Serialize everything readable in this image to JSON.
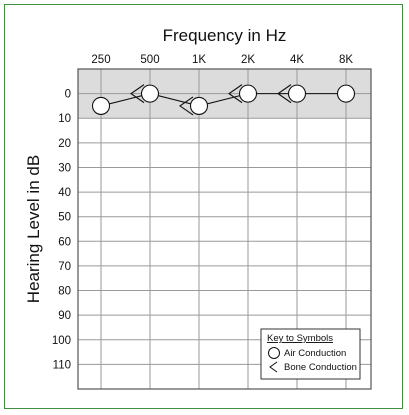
{
  "chart_data": {
    "type": "line",
    "title": "Frequency in Hz",
    "ylabel": "Hearing Level in dB",
    "x_tick_labels": [
      "250",
      "500",
      "1K",
      "2K",
      "4K",
      "8K"
    ],
    "y_ticks": [
      0,
      10,
      20,
      30,
      40,
      50,
      60,
      70,
      80,
      90,
      100,
      110
    ],
    "ylim": [
      -10,
      120
    ],
    "y_inverted": true,
    "shaded_band": [
      -10,
      10
    ],
    "series": [
      {
        "name": "Air Conduction",
        "symbol": "circle",
        "values": [
          5,
          0,
          5,
          0,
          0,
          0
        ]
      },
      {
        "name": "Bone Conduction",
        "symbol": "<",
        "points": [
          [
            "500",
            0
          ],
          [
            "1K",
            5
          ],
          [
            "2K",
            0
          ],
          [
            "4K",
            0
          ]
        ]
      }
    ],
    "legend": {
      "title": "Key to Symbols",
      "items": [
        "Air Conduction",
        "Bone Conduction"
      ],
      "position": "bottom-right"
    },
    "grid": true
  },
  "colors": {
    "band": "#dcdcdc",
    "grid": "#9a9a9a",
    "frame": "#3f8f3f",
    "ink": "#111111"
  }
}
